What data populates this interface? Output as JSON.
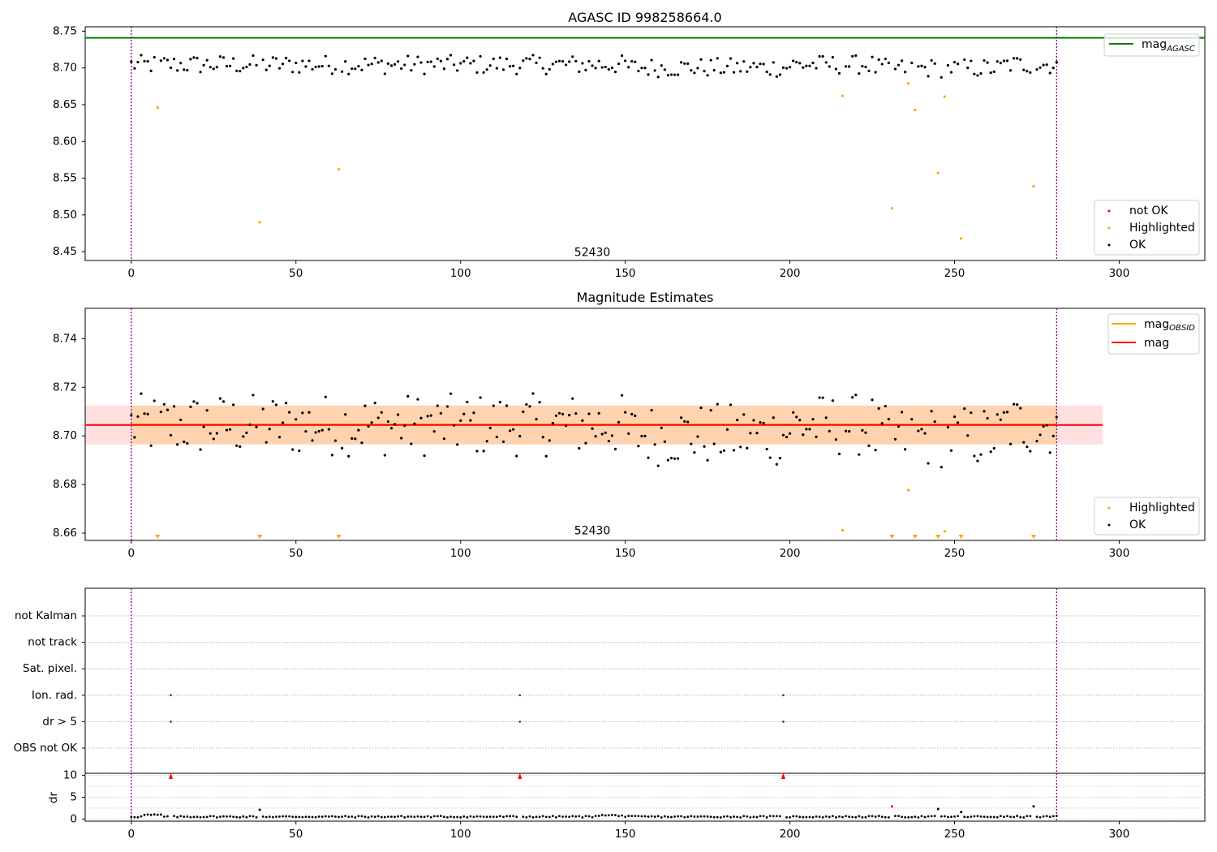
{
  "chart_data": [
    {
      "id": "agasc",
      "type": "scatter",
      "title": "AGASC ID 998258664.0",
      "xlim": [
        -14,
        326
      ],
      "ylim": [
        8.438,
        8.756
      ],
      "xticks": [
        0,
        50,
        100,
        150,
        200,
        250,
        300
      ],
      "yticks": [
        8.45,
        8.5,
        8.55,
        8.6,
        8.65,
        8.7,
        8.75
      ],
      "ytick_labels": [
        "8.45",
        "8.50",
        "8.55",
        "8.60",
        "8.65",
        "8.70",
        "8.75"
      ],
      "vlines": [
        0,
        281
      ],
      "hline": {
        "y": 8.741,
        "color": "#008000"
      },
      "annotation": {
        "x": 140,
        "y": 8.444,
        "text": "52430"
      },
      "legend_top": {
        "entries": [
          {
            "label": "mag",
            "sub": "AGASC",
            "color": "#008000"
          }
        ]
      },
      "legend_bottom": {
        "entries": [
          {
            "label": "not OK",
            "color": "#ff0000"
          },
          {
            "label": "Highlighted",
            "color": "#ffa500"
          },
          {
            "label": "OK",
            "color": "#000000"
          }
        ]
      },
      "highlighted": [
        {
          "x": 8,
          "y": 8.646
        },
        {
          "x": 39,
          "y": 8.49
        },
        {
          "x": 63,
          "y": 8.562
        },
        {
          "x": 216,
          "y": 8.662
        },
        {
          "x": 231,
          "y": 8.509
        },
        {
          "x": 236,
          "y": 8.679
        },
        {
          "x": 238,
          "y": 8.643
        },
        {
          "x": 245,
          "y": 8.557
        },
        {
          "x": 247,
          "y": 8.661
        },
        {
          "x": 252,
          "y": 8.468
        },
        {
          "x": 274,
          "y": 8.539
        }
      ]
    },
    {
      "id": "estimates",
      "type": "scatter",
      "title": "Magnitude Estimates",
      "xlim": [
        -14,
        326
      ],
      "ylim": [
        8.657,
        8.7525
      ],
      "xticks": [
        0,
        50,
        100,
        150,
        200,
        250,
        300
      ],
      "yticks": [
        8.66,
        8.68,
        8.7,
        8.72,
        8.74
      ],
      "ytick_labels": [
        "8.66",
        "8.68",
        "8.70",
        "8.72",
        "8.74"
      ],
      "vlines": [
        0,
        281
      ],
      "band_mag": {
        "x0": -14,
        "x1": 295,
        "y0": 8.6965,
        "y1": 8.7125,
        "mean": 8.7045,
        "color": "#ff0000"
      },
      "band_obsid": {
        "x0": 0,
        "x1": 281,
        "y0": 8.6965,
        "y1": 8.7125,
        "mean": 8.7047,
        "color": "#ffa500"
      },
      "annotation": {
        "x": 140,
        "y": 8.6595,
        "text": "52430"
      },
      "legend_top": {
        "entries": [
          {
            "label": "mag",
            "sub": "OBSID",
            "color": "#ffa500"
          },
          {
            "label": "mag",
            "sub": "",
            "color": "#ff0000"
          }
        ]
      },
      "legend_bottom": {
        "entries": [
          {
            "label": "Highlighted",
            "color": "#ffa500"
          },
          {
            "label": "OK",
            "color": "#000000"
          }
        ]
      },
      "highlighted": [
        {
          "x": 216,
          "y": 8.6612
        },
        {
          "x": 236,
          "y": 8.6777
        },
        {
          "x": 247,
          "y": 8.6607
        }
      ],
      "below_range": [
        8,
        39,
        63,
        231,
        238,
        245,
        252,
        274
      ]
    },
    {
      "id": "flags",
      "type": "scatter",
      "xlim": [
        -14,
        326
      ],
      "rows": [
        "not Kalman",
        "not track",
        "Sat. pixel.",
        "Ion. rad.",
        "dr > 5",
        "OBS not OK"
      ],
      "vlines": [
        0,
        281
      ],
      "points": [
        {
          "x": 12,
          "row": "Ion. rad."
        },
        {
          "x": 118,
          "row": "Ion. rad."
        },
        {
          "x": 198,
          "row": "Ion. rad."
        },
        {
          "x": 12,
          "row": "dr > 5"
        },
        {
          "x": 118,
          "row": "dr > 5"
        },
        {
          "x": 198,
          "row": "dr > 5"
        }
      ]
    },
    {
      "id": "dr",
      "type": "scatter",
      "ylabel": "dr",
      "xlim": [
        -14,
        326
      ],
      "ylim": [
        -0.5,
        10.5
      ],
      "xticks": [
        0,
        50,
        100,
        150,
        200,
        250,
        300
      ],
      "yticks": [
        0,
        5,
        10
      ],
      "ytick_labels": [
        "0",
        "5",
        "10"
      ],
      "vlines": [
        0,
        281
      ],
      "clipped_red": [
        12,
        118,
        198
      ],
      "outliers": [
        {
          "x": 39,
          "y": 2.1,
          "color": "#000000"
        },
        {
          "x": 231,
          "y": 2.9,
          "color": "#ff0000"
        },
        {
          "x": 245,
          "y": 2.3,
          "color": "#000000"
        },
        {
          "x": 252,
          "y": 1.6,
          "color": "#000000"
        },
        {
          "x": 274,
          "y": 2.9,
          "color": "#000000"
        }
      ]
    }
  ]
}
